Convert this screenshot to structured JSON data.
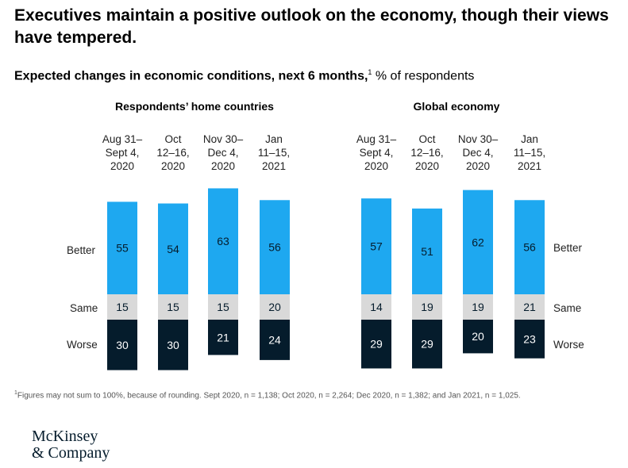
{
  "title": "Executives maintain a positive outlook on the economy, though their views have tempered.",
  "subtitle": {
    "bold": "Expected changes in economic conditions, next 6 months,",
    "footnote_mark": "1",
    "rest": " % of respondents"
  },
  "footnote": {
    "mark": "1",
    "text": "Figures may not sum to 100%, because of rounding. Sept 2020, n = 1,138; Oct 2020, n = 2,264; Dec 2020, n = 1,382; and Jan 2021, n = 1,025."
  },
  "logo": {
    "line1": "McKinsey",
    "line2": "& Company"
  },
  "colors": {
    "better": "#1ea8f0",
    "same": "#d9d9d9",
    "worse": "#051c2c",
    "label_on_dark": "#ffffff",
    "label_on_light": "#051c2c"
  },
  "row_labels": {
    "better": "Better",
    "same": "Same",
    "worse": "Worse"
  },
  "chart_data": [
    {
      "type": "bar",
      "title": "Respondents’ home countries",
      "categories": [
        [
          "Aug 31–",
          "Sept 4,",
          "2020"
        ],
        [
          "Oct",
          "12–16,",
          "2020"
        ],
        [
          "Nov 30–",
          "Dec 4,",
          "2020"
        ],
        [
          "Jan",
          "11–15,",
          "2021"
        ]
      ],
      "series": [
        {
          "name": "Better",
          "values": [
            55,
            54,
            63,
            56
          ]
        },
        {
          "name": "Same",
          "values": [
            15,
            15,
            15,
            20
          ]
        },
        {
          "name": "Worse",
          "values": [
            30,
            30,
            21,
            24
          ]
        }
      ]
    },
    {
      "type": "bar",
      "title": "Global economy",
      "categories": [
        [
          "Aug 31–",
          "Sept 4,",
          "2020"
        ],
        [
          "Oct",
          "12–16,",
          "2020"
        ],
        [
          "Nov 30–",
          "Dec 4,",
          "2020"
        ],
        [
          "Jan",
          "11–15,",
          "2021"
        ]
      ],
      "series": [
        {
          "name": "Better",
          "values": [
            57,
            51,
            62,
            56
          ]
        },
        {
          "name": "Same",
          "values": [
            14,
            19,
            19,
            21
          ]
        },
        {
          "name": "Worse",
          "values": [
            29,
            29,
            20,
            23
          ]
        }
      ]
    }
  ]
}
